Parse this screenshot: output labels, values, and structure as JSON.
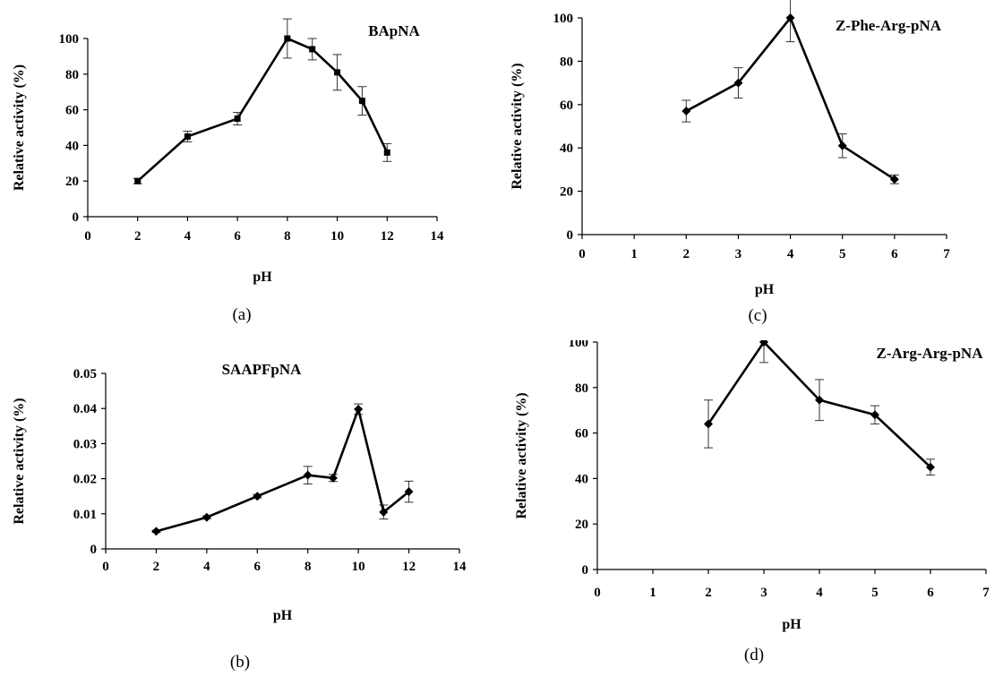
{
  "chart_data": [
    {
      "type": "line",
      "series_label": "BApNA",
      "caption": "(a)",
      "xlabel": "pH",
      "ylabel": "Relative activity (%)",
      "xlim": [
        0,
        14
      ],
      "xticks": [
        0,
        2,
        4,
        6,
        8,
        10,
        12,
        14
      ],
      "ylim": [
        0,
        100
      ],
      "yticks": [
        0,
        20,
        40,
        60,
        80,
        100
      ],
      "x": [
        2,
        4,
        6,
        8,
        9,
        10,
        11,
        12
      ],
      "y": [
        20,
        45,
        55,
        100,
        94,
        81,
        65,
        36
      ],
      "err": [
        1.5,
        3,
        3.5,
        11,
        6,
        10,
        8,
        5
      ],
      "marker": "square"
    },
    {
      "type": "line",
      "series_label": "SAAPFpNA",
      "caption": "(b)",
      "xlabel": "pH",
      "ylabel": "Relative activity (%)",
      "xlim": [
        0,
        14
      ],
      "xticks": [
        0,
        2,
        4,
        6,
        8,
        10,
        12,
        14
      ],
      "ylim": [
        0,
        0.05
      ],
      "yticks": [
        0,
        0.01,
        0.02,
        0.03,
        0.04,
        0.05
      ],
      "ytick_labels": [
        "0",
        "0.01",
        "0.02",
        "0.03",
        "0.04",
        "0.05"
      ],
      "x": [
        2,
        4,
        6,
        8,
        9,
        10,
        11,
        12
      ],
      "y": [
        0.005,
        0.009,
        0.015,
        0.021,
        0.0202,
        0.0398,
        0.0105,
        0.0163
      ],
      "err": [
        0.0003,
        0.0004,
        0.0005,
        0.0025,
        0.001,
        0.0015,
        0.002,
        0.003
      ],
      "marker": "diamond"
    },
    {
      "type": "line",
      "series_label": "Z-Phe-Arg-pNA",
      "caption": "(c)",
      "xlabel": "pH",
      "ylabel": "Relative activity (%)",
      "xlim": [
        0,
        7
      ],
      "xticks": [
        0,
        1,
        2,
        3,
        4,
        5,
        6,
        7
      ],
      "ylim": [
        0,
        100
      ],
      "yticks": [
        0,
        20,
        40,
        60,
        80,
        100
      ],
      "x": [
        2,
        3,
        4,
        5,
        6
      ],
      "y": [
        57,
        70,
        100,
        41,
        25.5
      ],
      "err": [
        5,
        7,
        11,
        5.5,
        2
      ],
      "marker": "diamond"
    },
    {
      "type": "line",
      "series_label": "Z-Arg-Arg-pNA",
      "caption": "(d)",
      "xlabel": "pH",
      "ylabel": "Relative activity (%)",
      "xlim": [
        0,
        7
      ],
      "xticks": [
        0,
        1,
        2,
        3,
        4,
        5,
        6,
        7
      ],
      "ylim": [
        0,
        100
      ],
      "yticks": [
        0,
        20,
        40,
        60,
        80,
        100
      ],
      "x": [
        2,
        3,
        4,
        5,
        6
      ],
      "y": [
        64,
        100,
        74.5,
        68,
        45
      ],
      "err": [
        10.5,
        9,
        9,
        4,
        3.5
      ],
      "marker": "diamond"
    }
  ]
}
